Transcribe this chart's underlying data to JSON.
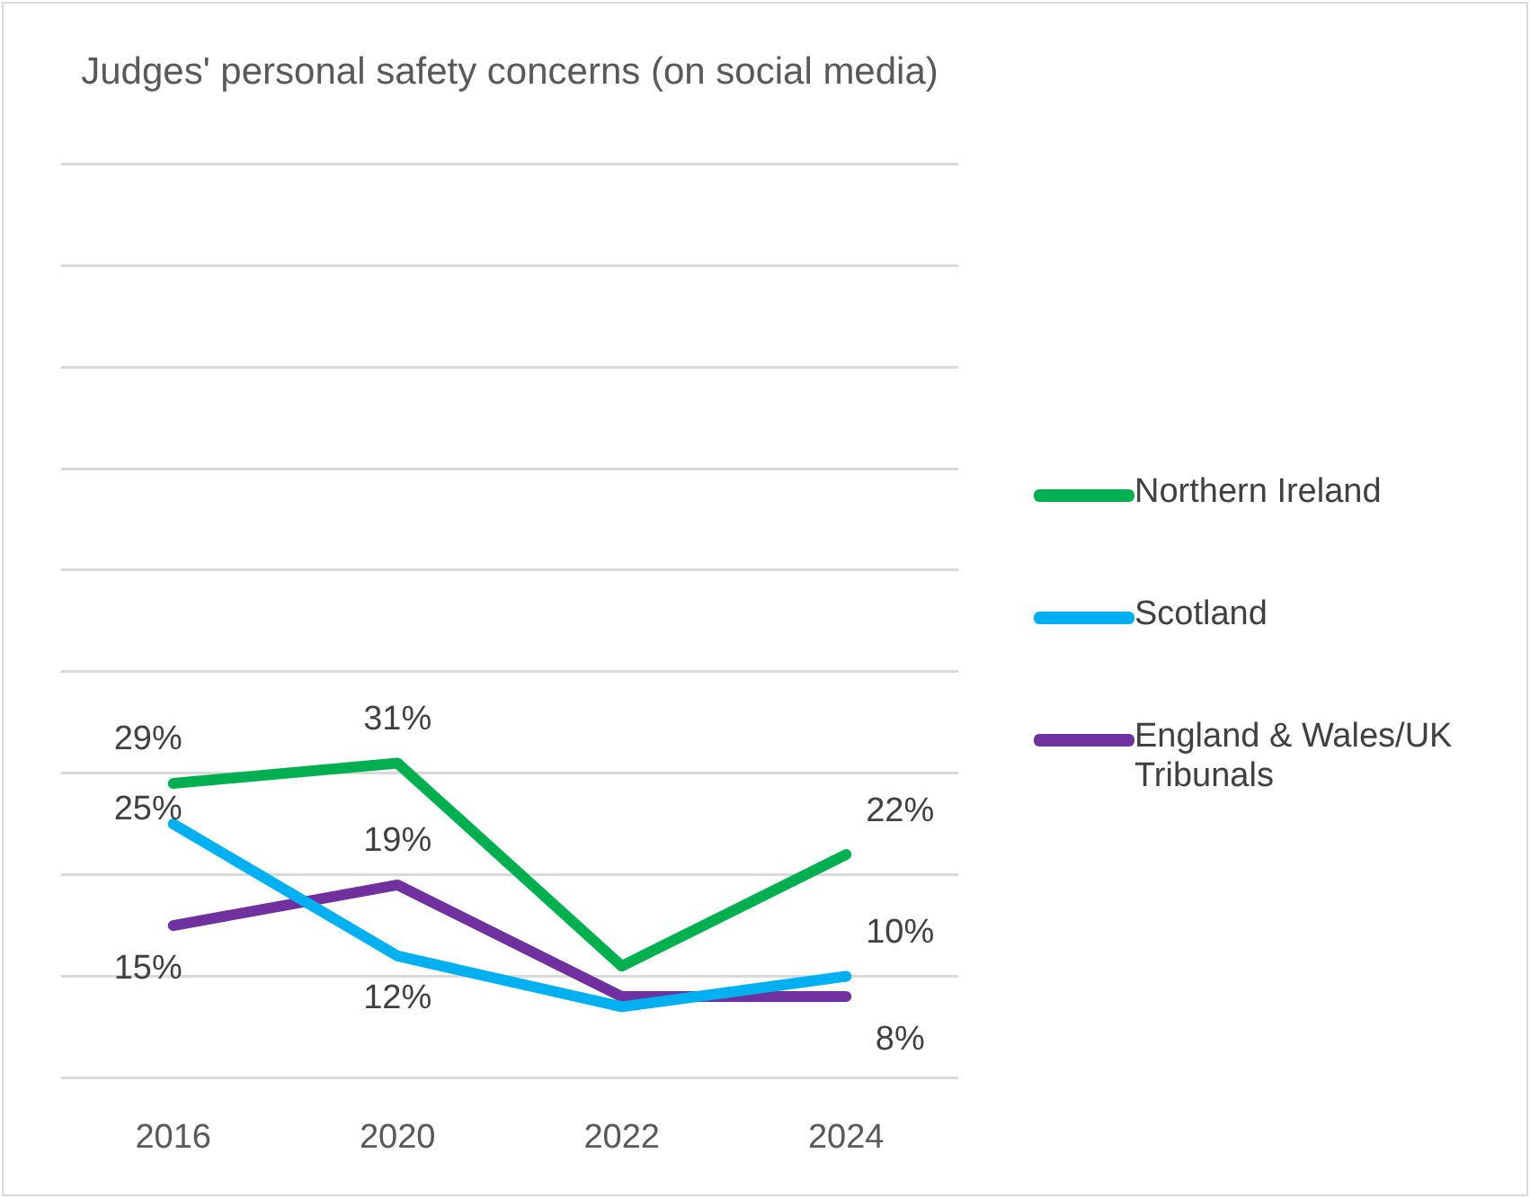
{
  "chart_data": {
    "type": "line",
    "title": "Judges' personal safety concerns (on social media)",
    "categories": [
      "2016",
      "2020",
      "2022",
      "2024"
    ],
    "series": [
      {
        "name": "Northern Ireland",
        "color": "#00b050",
        "values": [
          29,
          31,
          11,
          22
        ],
        "value_labels": [
          "29%",
          "31%",
          null,
          "22%"
        ]
      },
      {
        "name": "Scotland",
        "color": "#00b0f0",
        "values": [
          25,
          12,
          7,
          10
        ],
        "value_labels": [
          "25%",
          "12%",
          null,
          "10%"
        ]
      },
      {
        "name": "England & Wales/UK Tribunals",
        "color": "#7030a0",
        "values": [
          15,
          19,
          8,
          8
        ],
        "value_labels": [
          "15%",
          "19%",
          null,
          "8%"
        ]
      }
    ],
    "ylim": [
      0,
      90
    ],
    "yticks": [
      {
        "value": 0,
        "label": null
      },
      {
        "value": 10,
        "label": null
      },
      {
        "value": 20,
        "label": null
      },
      {
        "value": 30,
        "label": null
      },
      {
        "value": 40,
        "label": null
      },
      {
        "value": 50,
        "label": null
      },
      {
        "value": 60,
        "label": null
      },
      {
        "value": 70,
        "label": null
      },
      {
        "value": 80,
        "label": null
      },
      {
        "value": 90,
        "label": null
      }
    ],
    "tick_labels": "x",
    "grid": "y",
    "legend": "right",
    "marker": "none",
    "line_style": "solid"
  }
}
